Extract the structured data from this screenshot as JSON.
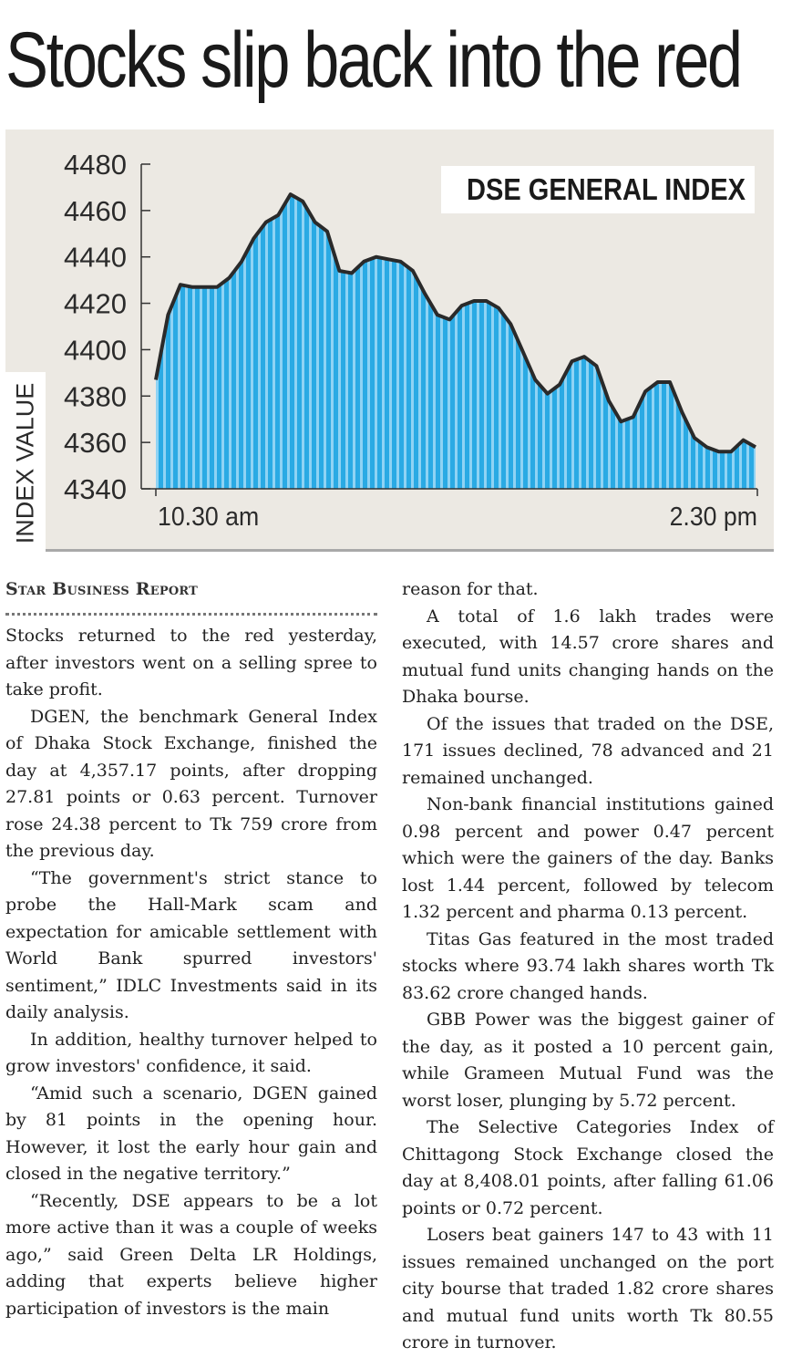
{
  "headline": "Stocks slip back into the red",
  "chart_data": {
    "type": "area",
    "title": "DSE GENERAL INDEX",
    "xlabel": "",
    "ylabel": "INDEX VALUE",
    "x_tick_labels": [
      "10.30 am",
      "2.30 pm"
    ],
    "y_ticks": [
      4480,
      4460,
      4440,
      4420,
      4400,
      4380,
      4360,
      4340
    ],
    "ylim": [
      4340,
      4480
    ],
    "grid": false,
    "fill_color": "#2aaae4",
    "stripe_color": "#8fd3f4",
    "line_color": "#2a2a2a",
    "values": [
      4387,
      4415,
      4428,
      4427,
      4427,
      4427,
      4431,
      4438,
      4448,
      4455,
      4458,
      4467,
      4464,
      4455,
      4451,
      4434,
      4433,
      4438,
      4440,
      4439,
      4438,
      4434,
      4424,
      4415,
      4413,
      4419,
      4421,
      4421,
      4418,
      4411,
      4399,
      4387,
      4381,
      4385,
      4395,
      4397,
      4393,
      4378,
      4369,
      4371,
      4382,
      4386,
      4386,
      4373,
      4362,
      4358,
      4356,
      4356,
      4361,
      4358
    ]
  },
  "article": {
    "byline": "Star Business Report",
    "left_paragraphs": [
      "Stocks returned to the red yesterday, after investors went on a selling spree to take profit.",
      "DGEN, the benchmark General Index of Dhaka Stock Exchange, finished the day at 4,357.17 points, after dropping 27.81 points or 0.63 percent. Turnover rose 24.38 percent to Tk 759 crore from the previous day.",
      "“The government's strict stance to probe the Hall-Mark scam and expectation for amicable settlement with World Bank spurred investors' sentiment,” IDLC Investments said in its daily analysis.",
      "In addition, healthy turnover helped to grow investors' confidence, it said.",
      "“Amid such a scenario, DGEN gained by 81 points in the opening hour. However, it lost the early hour gain and closed in the negative territory.”",
      "“Recently, DSE appears to be a lot more active than it was a couple of weeks ago,” said Green Delta LR Holdings, adding that experts believe higher participation of investors is the main"
    ],
    "right_paragraphs": [
      "reason for that.",
      "A total of 1.6 lakh trades were executed, with 14.57 crore shares and mutual fund units changing hands on the Dhaka bourse.",
      "Of the issues that traded on the DSE, 171 issues declined, 78 advanced and 21 remained unchanged.",
      "Non-bank financial institutions gained 0.98 percent and power 0.47 percent which were the gainers of the day. Banks lost 1.44 percent, followed by telecom 1.32 percent and pharma 0.13 percent.",
      "Titas Gas featured in the most traded stocks where 93.74 lakh shares worth Tk 83.62 crore changed hands.",
      "GBB Power was the biggest gainer of the day, as it posted a 10 percent gain, while Grameen Mutual Fund was the worst loser, plunging by 5.72 percent.",
      "The Selective Categories Index of Chittagong Stock Exchange closed the day at 8,408.01 points, after falling 61.06 points or 0.72 percent.",
      "Losers beat gainers 147 to 43 with 11 issues remained unchanged on the port city bourse that traded 1.82 crore shares and mutual fund units worth Tk 80.55 crore in turnover."
    ]
  }
}
